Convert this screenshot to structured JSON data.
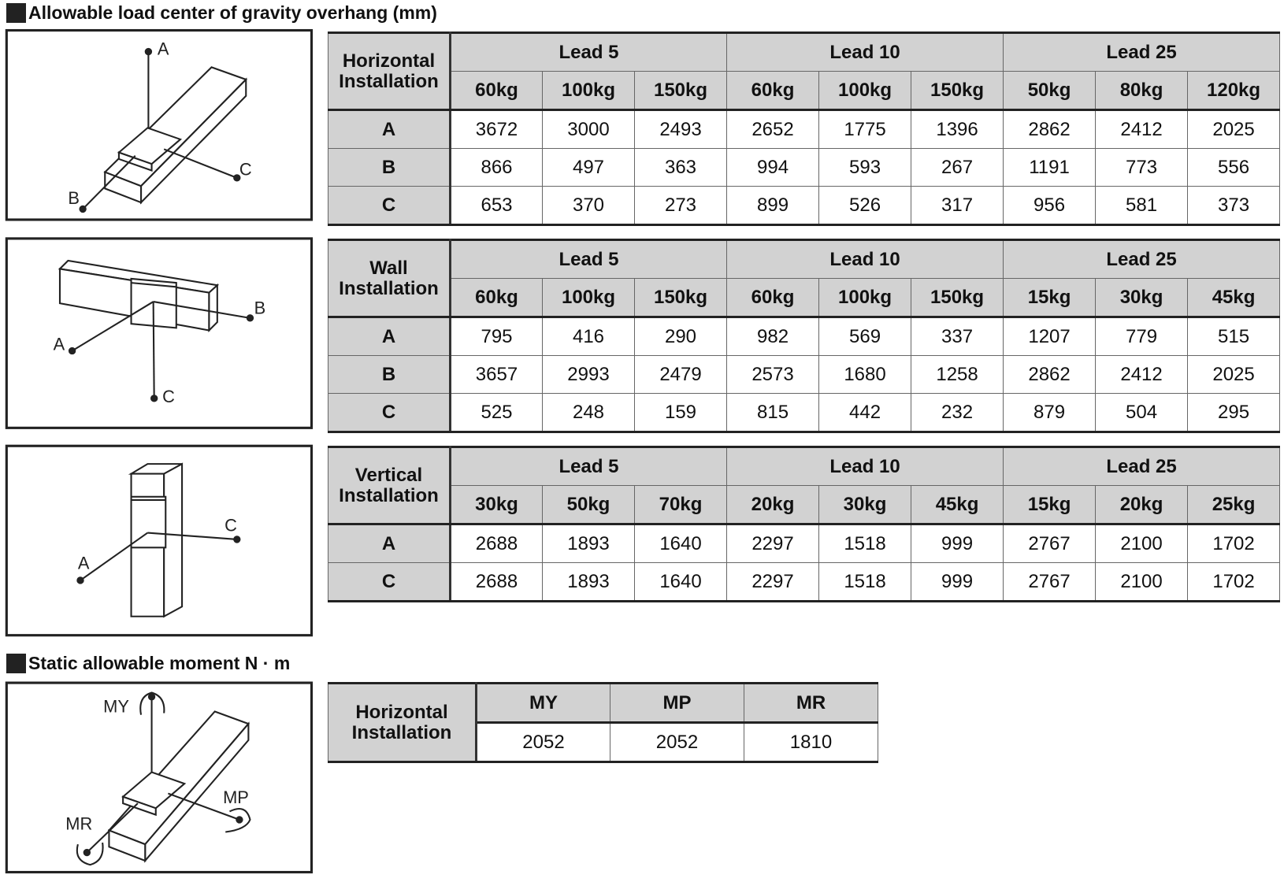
{
  "sections": [
    {
      "title": "Allowable load center of gravity overhang (mm)"
    },
    {
      "title": "Static allowable moment N · m"
    }
  ],
  "overhang_tables": [
    {
      "header": "Horizontal Installation",
      "groups": [
        "Lead 5",
        "Lead 10",
        "Lead 25"
      ],
      "loads": [
        "60kg",
        "100kg",
        "150kg",
        "60kg",
        "100kg",
        "150kg",
        "50kg",
        "80kg",
        "120kg"
      ],
      "rows": [
        {
          "label": "A",
          "values": [
            3672,
            3000,
            2493,
            2652,
            1775,
            1396,
            2862,
            2412,
            2025
          ]
        },
        {
          "label": "B",
          "values": [
            866,
            497,
            363,
            994,
            593,
            267,
            1191,
            773,
            556
          ]
        },
        {
          "label": "C",
          "values": [
            653,
            370,
            273,
            899,
            526,
            317,
            956,
            581,
            373
          ]
        }
      ],
      "diagram_labels": [
        "A",
        "B",
        "C"
      ]
    },
    {
      "header": "Wall Installation",
      "groups": [
        "Lead 5",
        "Lead 10",
        "Lead 25"
      ],
      "loads": [
        "60kg",
        "100kg",
        "150kg",
        "60kg",
        "100kg",
        "150kg",
        "15kg",
        "30kg",
        "45kg"
      ],
      "rows": [
        {
          "label": "A",
          "values": [
            795,
            416,
            290,
            982,
            569,
            337,
            1207,
            779,
            515
          ]
        },
        {
          "label": "B",
          "values": [
            3657,
            2993,
            2479,
            2573,
            1680,
            1258,
            2862,
            2412,
            2025
          ]
        },
        {
          "label": "C",
          "values": [
            525,
            248,
            159,
            815,
            442,
            232,
            879,
            504,
            295
          ]
        }
      ],
      "diagram_labels": [
        "A",
        "B",
        "C"
      ]
    },
    {
      "header": "Vertical Installation",
      "groups": [
        "Lead 5",
        "Lead 10",
        "Lead 25"
      ],
      "loads": [
        "30kg",
        "50kg",
        "70kg",
        "20kg",
        "30kg",
        "45kg",
        "15kg",
        "20kg",
        "25kg"
      ],
      "rows": [
        {
          "label": "A",
          "values": [
            2688,
            1893,
            1640,
            2297,
            1518,
            999,
            2767,
            2100,
            1702
          ]
        },
        {
          "label": "C",
          "values": [
            2688,
            1893,
            1640,
            2297,
            1518,
            999,
            2767,
            2100,
            1702
          ]
        }
      ],
      "diagram_labels": [
        "A",
        "C"
      ]
    }
  ],
  "moment_table": {
    "header": "Horizontal Installation",
    "columns": [
      "MY",
      "MP",
      "MR"
    ],
    "values": [
      2052,
      2052,
      1810
    ],
    "diagram_labels": [
      "MY",
      "MP",
      "MR"
    ]
  }
}
